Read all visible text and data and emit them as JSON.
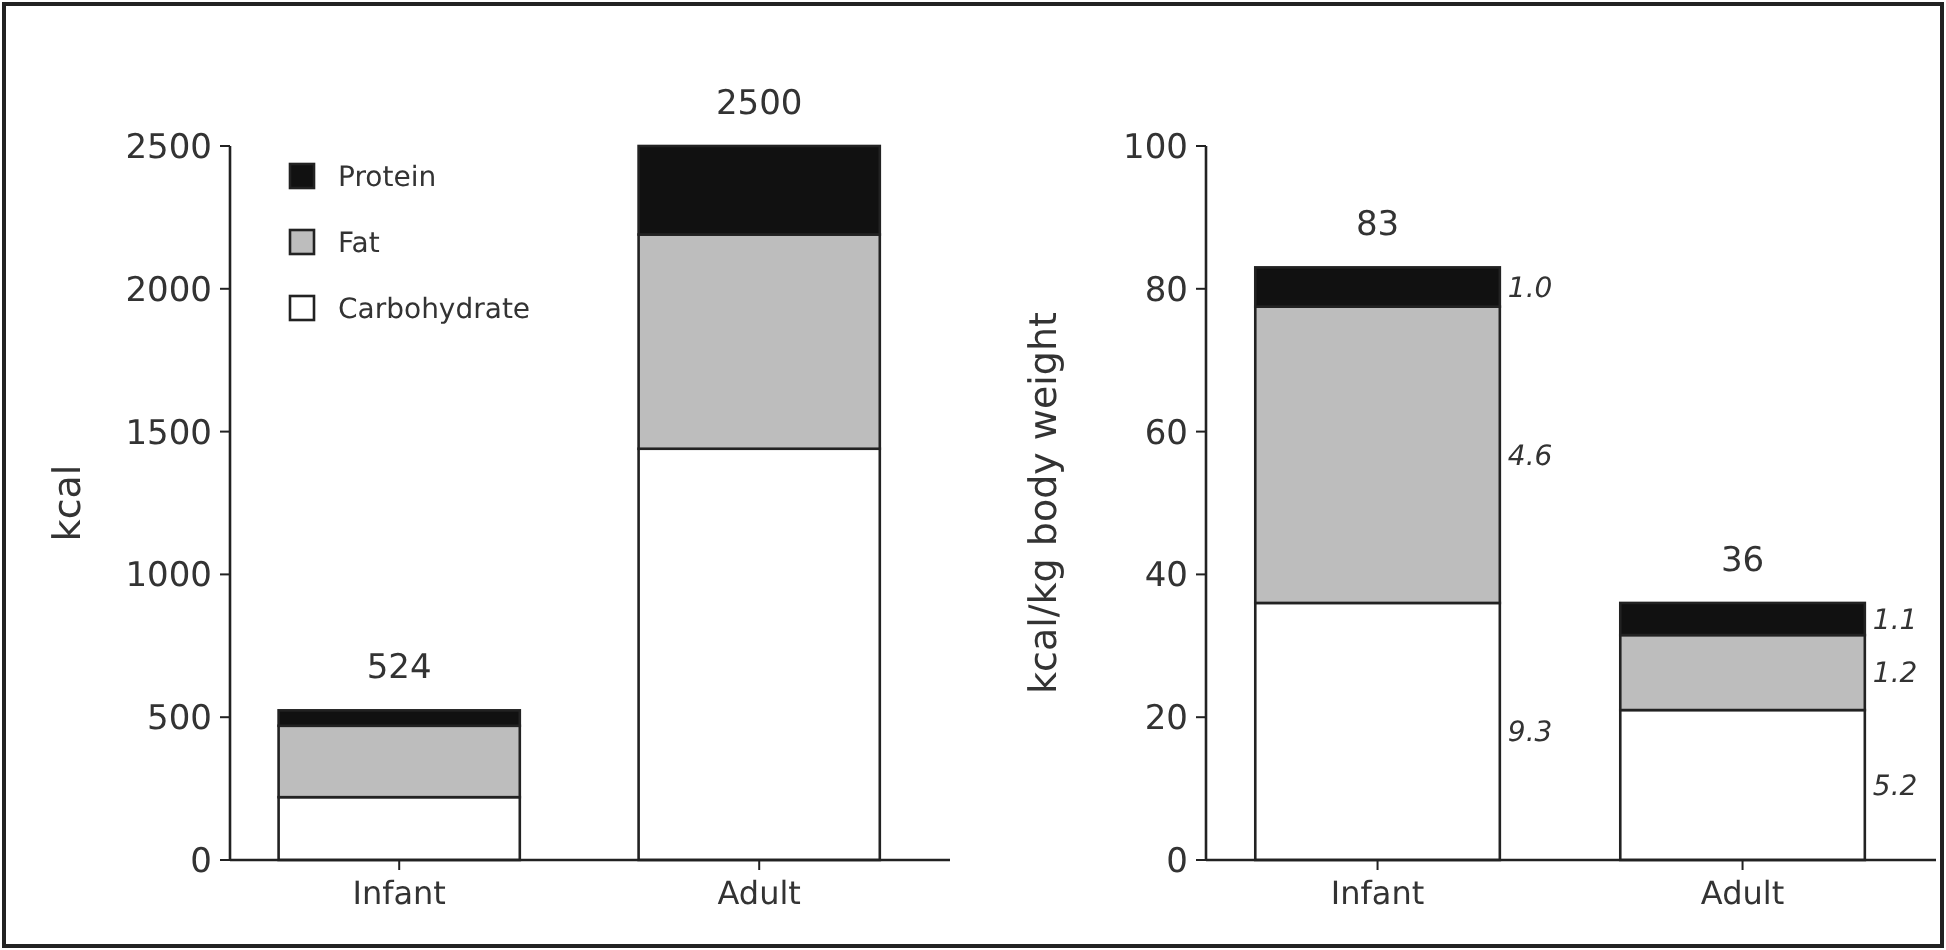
{
  "chart_data": [
    {
      "type": "bar",
      "stacked": true,
      "ylabel": "kcal",
      "categories": [
        "Infant",
        "Adult"
      ],
      "ylim": [
        0,
        2500
      ],
      "yticks": [
        0,
        500,
        1000,
        1500,
        2000,
        2500
      ],
      "legend": "top left",
      "totals": [
        "524",
        "2500"
      ],
      "series": [
        {
          "name": "Carbohydrate",
          "color": "#ffffff",
          "values": [
            220,
            1440
          ]
        },
        {
          "name": "Fat",
          "color": "#bdbdbd",
          "values": [
            250,
            750
          ]
        },
        {
          "name": "Protein",
          "color": "#111111",
          "values": [
            54,
            310
          ]
        }
      ]
    },
    {
      "type": "bar",
      "stacked": true,
      "ylabel": "kcal/kg body weight",
      "categories": [
        "Infant",
        "Adult"
      ],
      "ylim": [
        0,
        100
      ],
      "yticks": [
        0,
        20,
        40,
        60,
        80,
        100
      ],
      "totals": [
        "83",
        "36"
      ],
      "series": [
        {
          "color": "#ffffff",
          "values": [
            36,
            21
          ]
        },
        {
          "color": "#bdbdbd",
          "values": [
            41.5,
            10.5
          ]
        },
        {
          "color": "#111111",
          "values": [
            5.5,
            4.5
          ]
        }
      ],
      "annotations": [
        "1.0",
        "4.6",
        "9.3",
        "1.1",
        "1.2",
        "5.2"
      ]
    }
  ]
}
